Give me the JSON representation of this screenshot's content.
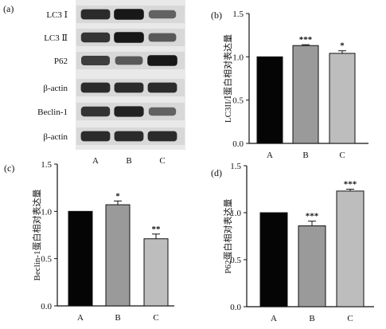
{
  "figure": {
    "blot": {
      "label": "(a)",
      "rows": [
        "LC3 Ⅰ",
        "LC3 Ⅱ",
        "P62",
        "β-actin",
        "Beclin-1",
        "β-actin"
      ],
      "lanes": [
        "A",
        "B",
        "C"
      ],
      "band_intensity": [
        [
          0.85,
          0.95,
          0.55
        ],
        [
          0.8,
          0.95,
          0.6
        ],
        [
          0.75,
          0.6,
          0.95
        ],
        [
          0.85,
          0.85,
          0.85
        ],
        [
          0.8,
          0.9,
          0.55
        ],
        [
          0.85,
          0.85,
          0.85
        ]
      ]
    }
  },
  "chart_data": [
    {
      "panel": "(b)",
      "type": "bar",
      "categories": [
        "A",
        "B",
        "C"
      ],
      "values": [
        1.0,
        1.13,
        1.04
      ],
      "errors": [
        0,
        0.01,
        0.03
      ],
      "significance": [
        "",
        "***",
        "*"
      ],
      "bar_colors": [
        "#050505",
        "#9a9a9a",
        "#bdbdbd"
      ],
      "ylabel": "LC3II/Ⅰ蛋白相对表达量",
      "xlabel": "",
      "ylim": [
        0,
        1.5
      ],
      "yticks": [
        "0.0",
        "0.5",
        "1.0",
        "1.5"
      ],
      "grid": false
    },
    {
      "panel": "(c)",
      "type": "bar",
      "categories": [
        "A",
        "B",
        "C"
      ],
      "values": [
        1.0,
        1.07,
        0.71
      ],
      "errors": [
        0,
        0.04,
        0.05
      ],
      "significance": [
        "",
        "*",
        "**"
      ],
      "bar_colors": [
        "#050505",
        "#9a9a9a",
        "#bdbdbd"
      ],
      "ylabel": "Beclin-1蛋白相对表达量",
      "xlabel": "",
      "ylim": [
        0,
        1.5
      ],
      "yticks": [
        "0.0",
        "0.5",
        "1.0",
        "1.5"
      ],
      "grid": false
    },
    {
      "panel": "(d)",
      "type": "bar",
      "categories": [
        "A",
        "B",
        "C"
      ],
      "values": [
        1.0,
        0.86,
        1.23
      ],
      "errors": [
        0,
        0.05,
        0.02
      ],
      "significance": [
        "",
        "***",
        "***"
      ],
      "bar_colors": [
        "#050505",
        "#9a9a9a",
        "#bdbdbd"
      ],
      "ylabel": "P62蛋白相对表达量",
      "xlabel": "",
      "ylim": [
        0,
        1.5
      ],
      "yticks": [
        "0.0",
        "0.5",
        "1.0",
        "1.5"
      ],
      "grid": false
    }
  ]
}
